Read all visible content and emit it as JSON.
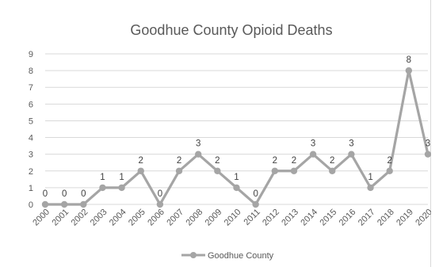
{
  "chart_data": {
    "type": "line",
    "title": "Goodhue County Opioid Deaths",
    "xlabel": "",
    "ylabel": "",
    "categories": [
      "2000",
      "2001",
      "2002",
      "2003",
      "2004",
      "2005",
      "2006",
      "2007",
      "2008",
      "2009",
      "2010",
      "2011",
      "2012",
      "2013",
      "2014",
      "2015",
      "2016",
      "2017",
      "2018",
      "2019",
      "2020"
    ],
    "series": [
      {
        "name": "Goodhue County",
        "values": [
          0,
          0,
          0,
          1,
          1,
          2,
          0,
          2,
          3,
          2,
          1,
          0,
          2,
          2,
          3,
          2,
          3,
          1,
          2,
          8,
          3
        ],
        "color": "#a5a5a5"
      }
    ],
    "ylim": [
      0,
      9
    ],
    "yticks": [
      "0",
      "1",
      "2",
      "3",
      "4",
      "5",
      "6",
      "7",
      "8",
      "9"
    ],
    "grid": true,
    "data_labels": true,
    "legend_position": "bottom"
  }
}
